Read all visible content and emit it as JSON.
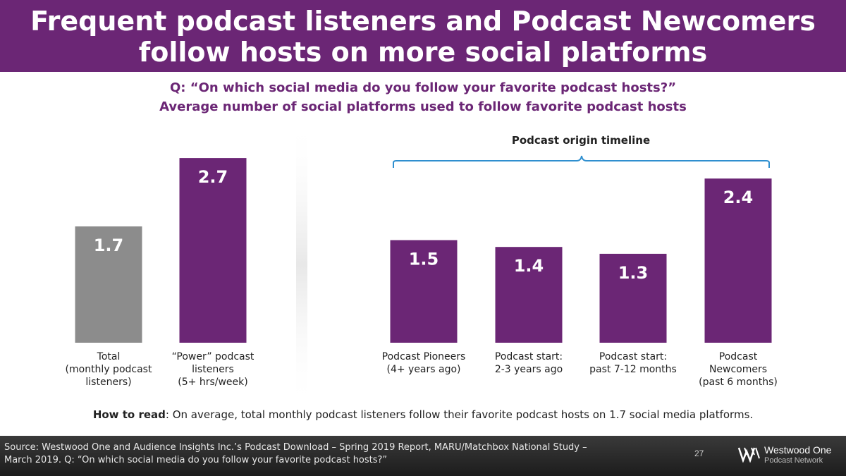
{
  "header": {
    "title_line1": "Frequent podcast listeners and Podcast Newcomers",
    "title_line2": "follow hosts on more social platforms"
  },
  "subtitle": {
    "question": "Q: “On which social media do you follow your favorite podcast hosts?”",
    "measure": "Average number of social platforms used to follow favorite podcast hosts"
  },
  "bracket_label": "Podcast origin timeline",
  "how_to_read": {
    "label": "How to read",
    "text": ": On average, total monthly podcast listeners follow their favorite podcast hosts on 1.7 social media platforms."
  },
  "footer": {
    "source_line1": "Source: Westwood One and Audience Insights Inc.’s Podcast Download – Spring 2019 Report, MARU/Matchbox National Study –",
    "source_line2": "March 2019. Q: “On which social media do you follow your favorite podcast hosts?”",
    "page_number": "27",
    "logo_brand": "Westwood One",
    "logo_network": "Podcast Network"
  },
  "colors": {
    "purple": "#6b2675",
    "gray": "#8c8c8c",
    "bracket": "#2f8fcf"
  },
  "chart_data": {
    "type": "bar",
    "ylim": [
      0,
      3
    ],
    "bars": [
      {
        "category": [
          "Total",
          "(monthly podcast",
          "listeners)"
        ],
        "value": 1.7,
        "label": "1.7",
        "color": "#8c8c8c",
        "group": "left"
      },
      {
        "category": [
          "“Power” podcast",
          "listeners",
          "(5+ hrs/week)"
        ],
        "value": 2.7,
        "label": "2.7",
        "color": "#6b2675",
        "group": "left"
      },
      {
        "category": [
          "Podcast Pioneers",
          "(4+ years ago)"
        ],
        "value": 1.5,
        "label": "1.5",
        "color": "#6b2675",
        "group": "right"
      },
      {
        "category": [
          "Podcast start:",
          "2-3 years ago"
        ],
        "value": 1.4,
        "label": "1.4",
        "color": "#6b2675",
        "group": "right"
      },
      {
        "category": [
          "Podcast start:",
          "past 7-12 months"
        ],
        "value": 1.3,
        "label": "1.3",
        "color": "#6b2675",
        "group": "right"
      },
      {
        "category": [
          "Podcast",
          "Newcomers",
          "(past 6 months)"
        ],
        "value": 2.4,
        "label": "2.4",
        "color": "#6b2675",
        "group": "right"
      }
    ]
  }
}
